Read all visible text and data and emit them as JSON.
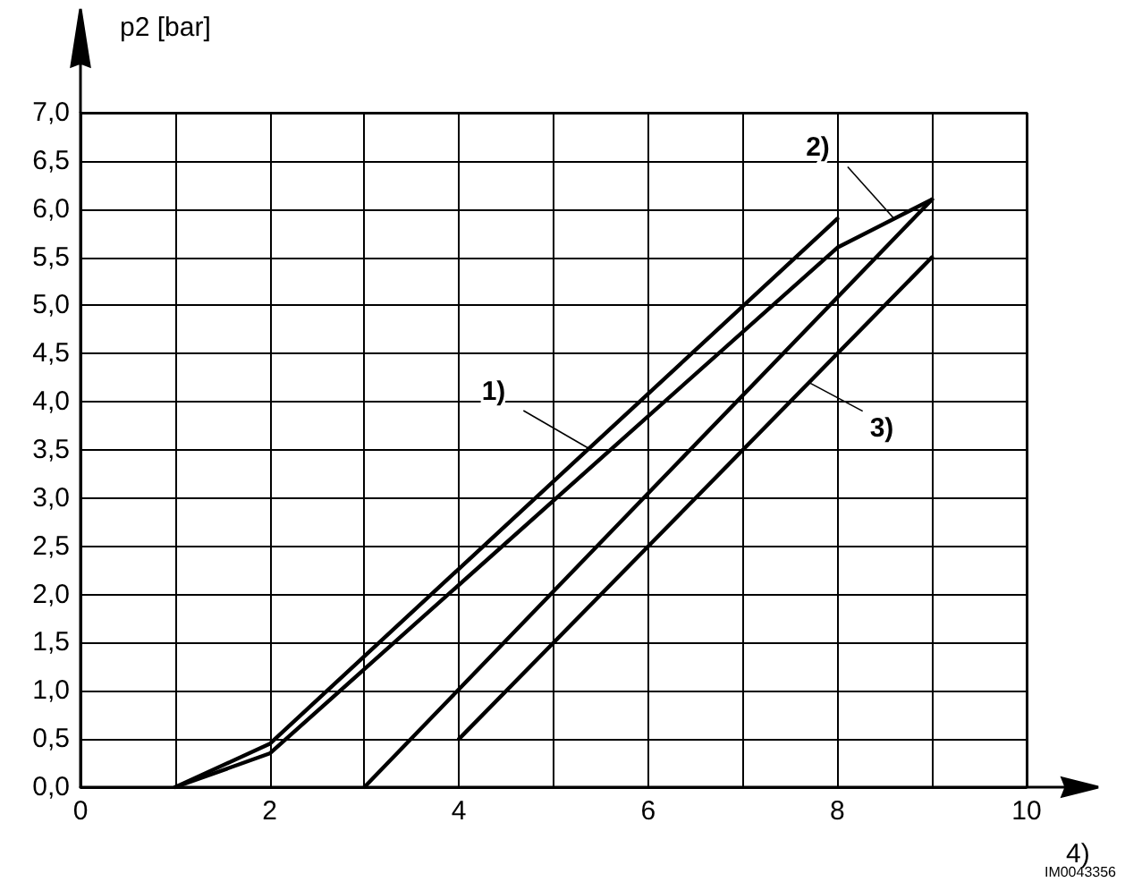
{
  "chart_data": {
    "type": "line",
    "xlabel": "4)",
    "ylabel": "p2 [bar]",
    "xlim": [
      0,
      10
    ],
    "ylim": [
      0,
      7
    ],
    "xticks": [
      0,
      {
        "value": 1,
        "label": null
      },
      2,
      {
        "value": 3,
        "label": null
      },
      4,
      {
        "value": 5,
        "label": null
      },
      6,
      {
        "value": 7,
        "label": null
      },
      8,
      {
        "value": 9,
        "label": null
      },
      10
    ],
    "yticks": [
      {
        "value": 0,
        "label": "0,0"
      },
      {
        "value": 0.5,
        "label": "0,5"
      },
      {
        "value": 1,
        "label": "1,0"
      },
      {
        "value": 1.5,
        "label": "1,5"
      },
      {
        "value": 2,
        "label": "2,0"
      },
      {
        "value": 2.5,
        "label": "2,5"
      },
      {
        "value": 3,
        "label": "3,0"
      },
      {
        "value": 3.5,
        "label": "3,5"
      },
      {
        "value": 4,
        "label": "4,0"
      },
      {
        "value": 4.5,
        "label": "4,5"
      },
      {
        "value": 5,
        "label": "5,0"
      },
      {
        "value": 5.5,
        "label": "5,5"
      },
      {
        "value": 6,
        "label": "6,0"
      },
      {
        "value": 6.5,
        "label": "6,5"
      },
      {
        "value": 7,
        "label": "7,0"
      }
    ],
    "grid": true,
    "marker": "none",
    "line_style": "solid",
    "series": [
      {
        "color": "#000000",
        "x": [
          1,
          2,
          8
        ],
        "values": [
          0,
          0.45,
          5.9
        ]
      },
      {
        "color": "#000000",
        "x": [
          1,
          2,
          8,
          9
        ],
        "values": [
          0,
          0.35,
          5.6,
          6.1
        ]
      },
      {
        "color": "#000000",
        "x": [
          3,
          9
        ],
        "values": [
          0,
          6.1
        ]
      },
      {
        "color": "#000000",
        "x": [
          4,
          9
        ],
        "values": [
          0.5,
          5.5
        ]
      }
    ],
    "annotations": [
      {
        "text": "1)",
        "x": 5.4,
        "y": 3.5
      },
      {
        "text": "2)",
        "x": 8.6,
        "y": 5.9
      },
      {
        "text": "3)",
        "x": 7.7,
        "y": 4.2
      },
      "IM0043356"
    ]
  }
}
